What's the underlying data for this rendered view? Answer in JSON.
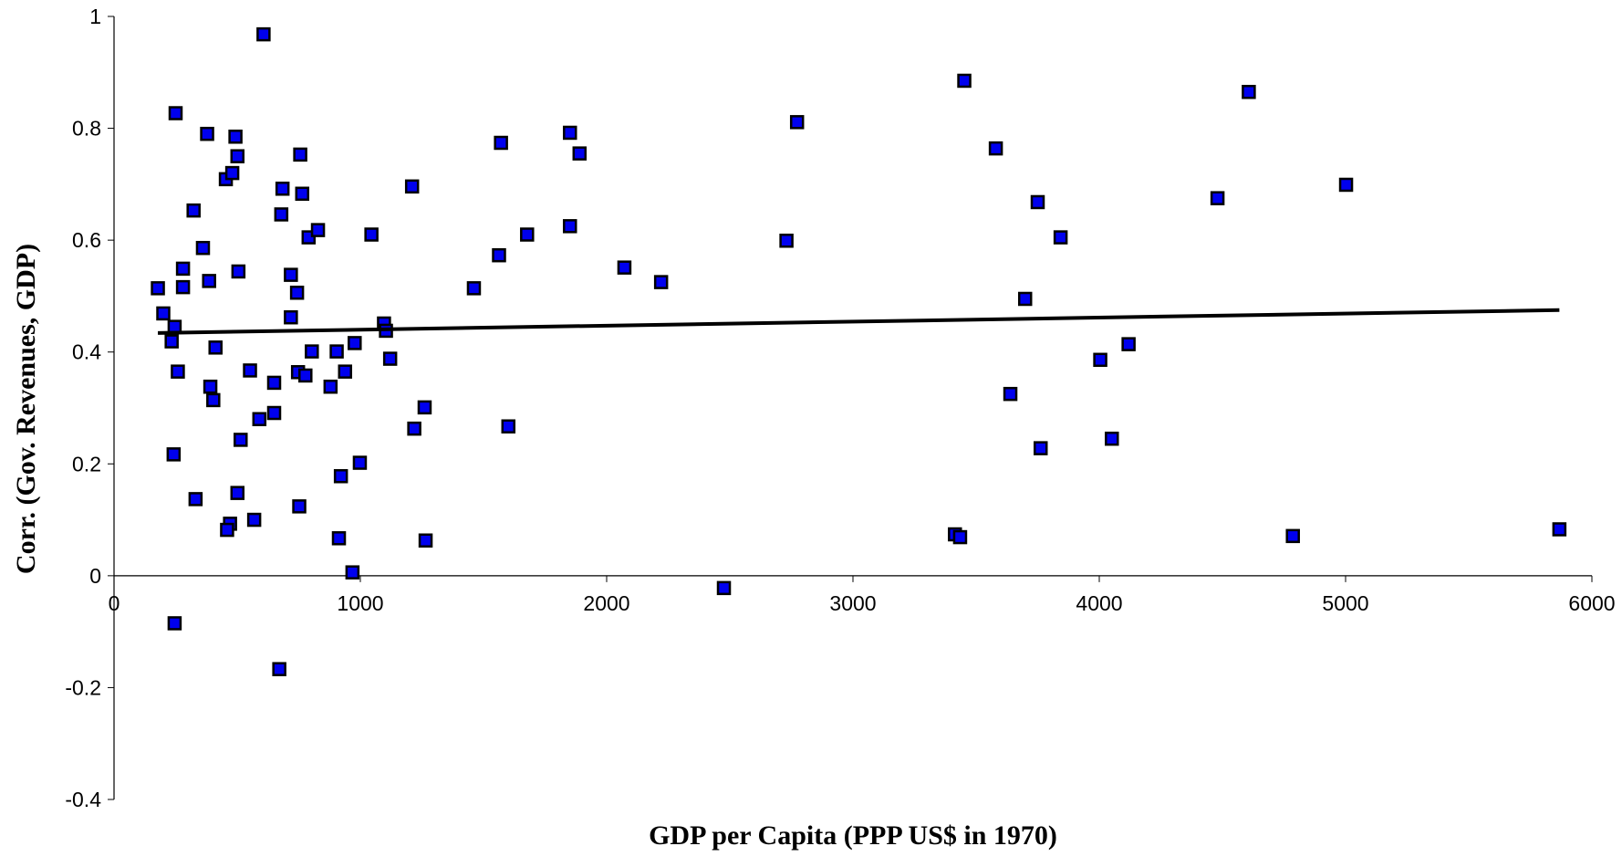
{
  "chart_data": {
    "type": "scatter",
    "x_label": "GDP per Capita (PPP US$ in 1970)",
    "y_label": "Corr. (Gov. Revenues, GDP)",
    "xlim": [
      0,
      6000
    ],
    "xticks": [
      0,
      1000,
      2000,
      3000,
      4000,
      5000,
      6000
    ],
    "ylim": [
      -0.4,
      1
    ],
    "yticks": [
      -0.4,
      -0.2,
      0,
      0.2,
      0.4,
      0.6,
      0.8,
      1
    ],
    "grid": false,
    "series": [
      {
        "color": "#0000ee",
        "x": [
          178,
          200,
          246,
          234,
          259,
          242,
          246,
          250,
          280,
          280,
          323,
          361,
          331,
          378,
          386,
          391,
          403,
          412,
          454,
          480,
          493,
          501,
          505,
          514,
          501,
          471,
          459,
          569,
          552,
          590,
          607,
          650,
          650,
          671,
          684,
          679,
          718,
          743,
          718,
          747,
          777,
          756,
          764,
          752,
          790,
          828,
          803,
          879,
          904,
          938,
          977,
          921,
          913,
          968,
          998,
          1045,
          1096,
          1104,
          1121,
          1210,
          1219,
          1261,
          1265,
          1461,
          1563,
          1571,
          1601,
          1677,
          1851,
          1851,
          1890,
          2072,
          2221,
          2476,
          2730,
          2773,
          3414,
          3435,
          3452,
          3580,
          3639,
          3699,
          3750,
          3762,
          3843,
          4004,
          4051,
          4119,
          4480,
          4607,
          4786,
          5002,
          5868
        ],
        "values": [
          0.514,
          0.469,
          0.445,
          0.419,
          0.365,
          0.217,
          -0.085,
          0.827,
          0.549,
          0.516,
          0.653,
          0.586,
          0.137,
          0.79,
          0.527,
          0.338,
          0.314,
          0.408,
          0.709,
          0.72,
          0.785,
          0.75,
          0.544,
          0.243,
          0.148,
          0.093,
          0.082,
          0.1,
          0.367,
          0.28,
          0.968,
          0.345,
          0.291,
          -0.167,
          0.692,
          0.646,
          0.538,
          0.506,
          0.462,
          0.364,
          0.358,
          0.753,
          0.683,
          0.124,
          0.605,
          0.618,
          0.401,
          0.338,
          0.401,
          0.365,
          0.416,
          0.178,
          0.067,
          0.006,
          0.202,
          0.61,
          0.451,
          0.438,
          0.388,
          0.696,
          0.263,
          0.301,
          0.063,
          0.514,
          0.573,
          0.774,
          0.267,
          0.61,
          0.792,
          0.625,
          0.755,
          0.551,
          0.525,
          -0.022,
          0.599,
          0.811,
          0.074,
          0.069,
          0.885,
          0.764,
          0.325,
          0.495,
          0.668,
          0.228,
          0.605,
          0.386,
          0.245,
          0.414,
          0.675,
          0.865,
          0.071,
          0.699,
          0.083
        ]
      }
    ],
    "trendline": {
      "color": "#000000",
      "x": [
        178,
        5868
      ],
      "values": [
        0.434,
        0.475
      ]
    }
  }
}
